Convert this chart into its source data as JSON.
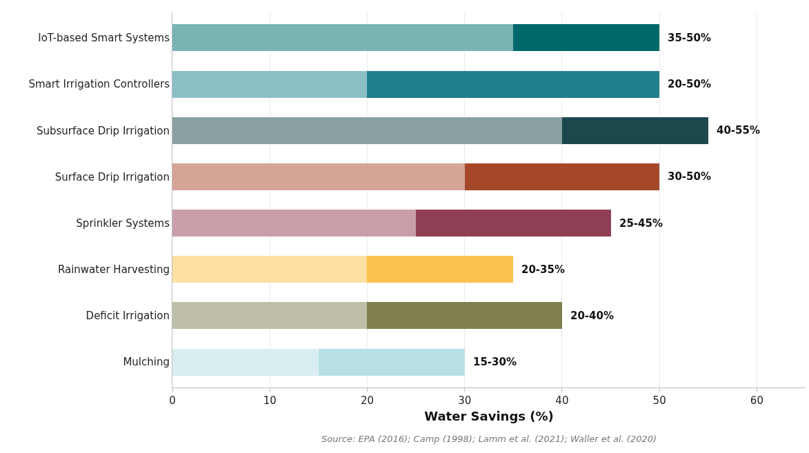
{
  "chart_data": {
    "type": "bar",
    "orientation": "horizontal",
    "stacked": true,
    "xlabel": "Water Savings (%)",
    "categories": [
      "IoT-based Smart Systems",
      "Smart Irrigation Controllers",
      "Subsurface Drip Irrigation",
      "Surface Drip Irrigation",
      "Sprinkler Systems",
      "Rainwater Harvesting",
      "Deficit Irrigation",
      "Mulching"
    ],
    "series": [
      {
        "colors": [
          "#7ab3b3",
          "#8bbfc6",
          "#8aa1a3",
          "#d4a596",
          "#c99ea8",
          "#fedfa4",
          "#bfbfa8",
          "#d9eef1"
        ],
        "values": [
          35,
          20,
          40,
          30,
          25,
          20,
          20,
          15
        ]
      },
      {
        "colors": [
          "#00686b",
          "#1f7f8c",
          "#1c474d",
          "#a5482a",
          "#8e3f54",
          "#fec24f",
          "#7f7f50",
          "#b8e0e6"
        ],
        "values": [
          15,
          30,
          15,
          20,
          20,
          15,
          20,
          15
        ]
      }
    ],
    "xlim": [
      0,
      65
    ],
    "xticks": [
      0,
      10,
      20,
      30,
      40,
      50,
      60
    ],
    "grid": "x",
    "annotations": [
      "Source: EPA (2016); Camp (1998); Lamm et al. (2021); Waller et al. (2020)",
      {
        "text": "35-50%",
        "x": 50,
        "y": "IoT-based Smart Systems"
      },
      {
        "text": "20-50%",
        "x": 50,
        "y": "Smart Irrigation Controllers"
      },
      {
        "text": "40-55%",
        "x": 55,
        "y": "Subsurface Drip Irrigation"
      },
      {
        "text": "30-50%",
        "x": 50,
        "y": "Surface Drip Irrigation"
      },
      {
        "text": "25-45%",
        "x": 45,
        "y": "Sprinkler Systems"
      },
      {
        "text": "20-35%",
        "x": 35,
        "y": "Rainwater Harvesting"
      },
      {
        "text": "20-40%",
        "x": 40,
        "y": "Deficit Irrigation"
      },
      {
        "text": "15-30%",
        "x": 30,
        "y": "Mulching"
      }
    ]
  }
}
